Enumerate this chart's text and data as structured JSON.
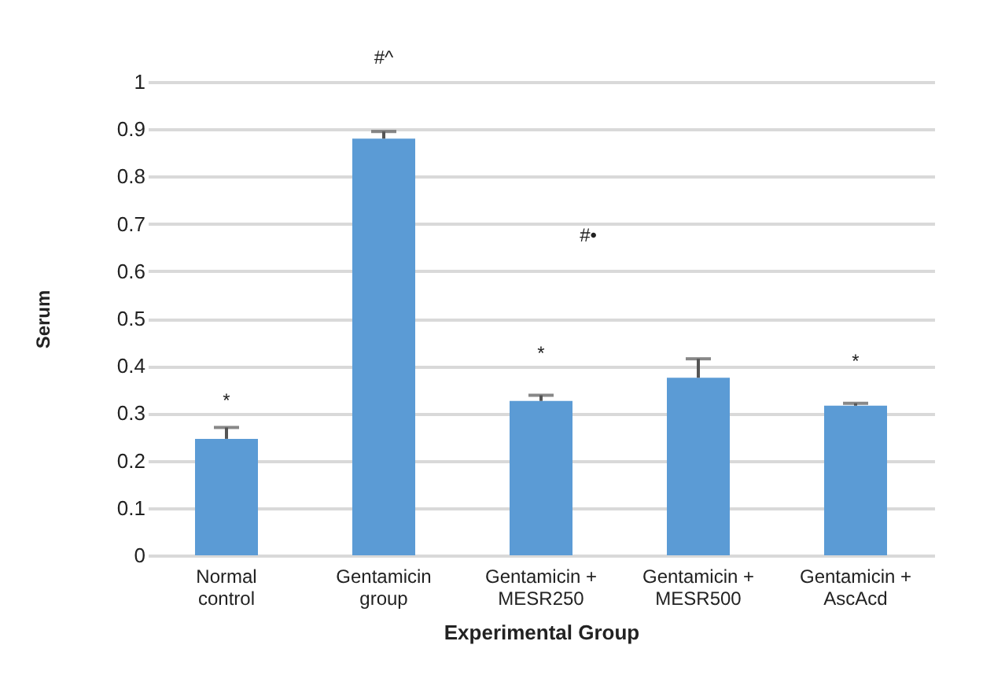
{
  "chart_data": {
    "type": "bar",
    "xlabel": "Experimental Group",
    "ylabel": "Serum",
    "categories": [
      "Normal control",
      "Gentamicin group",
      "Gentamicin + MESR250",
      "Gentamicin + MESR500",
      "Gentamicin + AscAcd"
    ],
    "values": [
      0.246,
      0.88,
      0.326,
      0.375,
      0.316
    ],
    "errors": [
      0.024,
      0.015,
      0.012,
      0.04,
      0.005
    ],
    "color": "#5b9bd5",
    "ylim": [
      0,
      1
    ],
    "yticks": [
      0,
      0.1,
      0.2,
      0.3,
      0.4,
      0.5,
      0.6,
      0.7,
      0.8,
      0.9,
      1
    ],
    "grid": "y",
    "annotations": [
      "*",
      "#^",
      "#•",
      "*",
      "*"
    ]
  }
}
